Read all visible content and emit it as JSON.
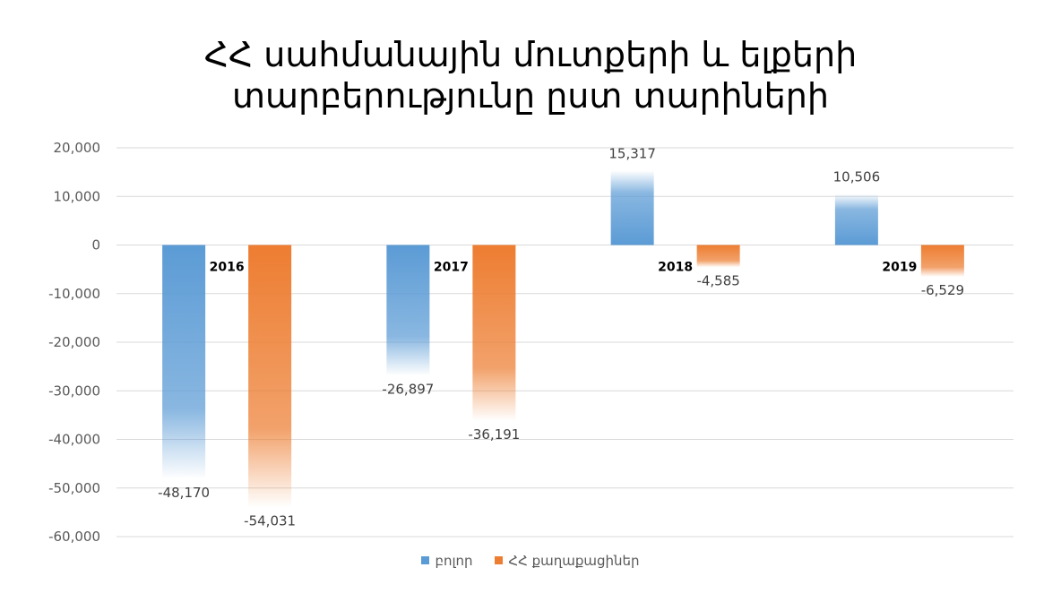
{
  "chart_data": {
    "type": "bar",
    "title_lines": [
      "ՀՀ սահմանային մուտքերի և ելքերի",
      "տարբերությունը ըստ տարիների"
    ],
    "categories": [
      "2016",
      "2017",
      "2018",
      "2019"
    ],
    "series": [
      {
        "name": "բոլոր",
        "values": [
          -48170,
          -26897,
          15317,
          10506
        ],
        "labels": [
          "-48,170",
          "-26,897",
          "15,317",
          "10,506"
        ],
        "color": "#5b9bd5"
      },
      {
        "name": "ՀՀ քաղաքացիներ",
        "values": [
          -54031,
          -36191,
          -4585,
          -6529
        ],
        "labels": [
          "-54,031",
          "-36,191",
          "-4,585",
          "-6,529"
        ],
        "color": "#ed7d31"
      }
    ],
    "yticks": [
      "20,000",
      "10,000",
      "0",
      "-10,000",
      "-20,000",
      "-30,000",
      "-40,000",
      "-50,000",
      "-60,000"
    ],
    "ytick_values": [
      20000,
      10000,
      0,
      -10000,
      -20000,
      -30000,
      -40000,
      -50000,
      -60000
    ],
    "ylim": [
      -60000,
      20000
    ],
    "grid": true,
    "legend_position": "bottom"
  }
}
